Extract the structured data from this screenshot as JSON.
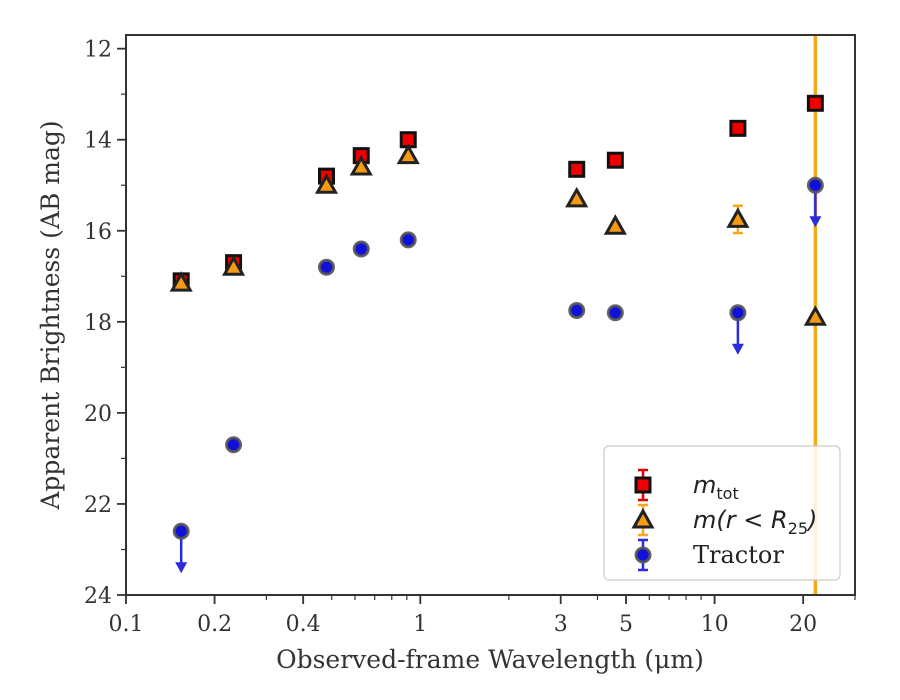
{
  "chart_data": {
    "type": "scatter",
    "xlabel": "Observed-frame Wavelength (μm)",
    "ylabel": "Apparent Brightness (AB mag)",
    "x_scale": "log",
    "xlim": [
      0.1,
      30
    ],
    "ylim": [
      24,
      11.7
    ],
    "y_inverted": true,
    "x_ticks": [
      {
        "value": 0.1,
        "label": "0.1"
      },
      {
        "value": 0.2,
        "label": "0.2"
      },
      {
        "value": 0.4,
        "label": "0.4"
      },
      {
        "value": 1,
        "label": "1"
      },
      {
        "value": 3,
        "label": "3"
      },
      {
        "value": 5,
        "label": "5"
      },
      {
        "value": 10,
        "label": "10"
      },
      {
        "value": 20,
        "label": "20"
      }
    ],
    "y_ticks": [
      {
        "value": 12,
        "label": "12"
      },
      {
        "value": 14,
        "label": "14"
      },
      {
        "value": 16,
        "label": "16"
      },
      {
        "value": 18,
        "label": "18"
      },
      {
        "value": 20,
        "label": "20"
      },
      {
        "value": 22,
        "label": "22"
      },
      {
        "value": 24,
        "label": "24"
      }
    ],
    "vertical_line": {
      "x": 22,
      "color": "#f5a81c"
    },
    "legend_position": "lower-right",
    "series": [
      {
        "name": "m_tot",
        "marker": "square",
        "color": "#ee0000",
        "edge_color": "#111111",
        "errorbar_color": "#dd0000",
        "x": [
          0.154,
          0.232,
          0.48,
          0.63,
          0.91,
          3.4,
          4.6,
          12.0,
          22.0
        ],
        "y": [
          17.1,
          16.7,
          14.8,
          14.35,
          14.0,
          14.65,
          14.45,
          13.75,
          13.2
        ],
        "yerr": [
          0.08,
          0.08,
          0.05,
          0.05,
          0.05,
          0.05,
          0.05,
          0.05,
          0.05
        ]
      },
      {
        "name": "m(r<R25)",
        "marker": "triangle",
        "color": "#f59a12",
        "edge_color": "#222222",
        "errorbar_color": "#f5a81c",
        "x": [
          0.154,
          0.232,
          0.48,
          0.63,
          0.91,
          3.4,
          4.6,
          12.0,
          22.0
        ],
        "y": [
          17.15,
          16.8,
          15.0,
          14.6,
          14.35,
          15.3,
          15.9,
          15.75,
          17.9
        ],
        "yerr": [
          0.05,
          0.05,
          0.05,
          0.05,
          0.05,
          0.05,
          0.05,
          0.3,
          0.05
        ]
      },
      {
        "name": "Tractor",
        "marker": "circle",
        "color": "#1010dd",
        "edge_color": "#555555",
        "errorbar_color": "#2a2ae0",
        "x": [
          0.154,
          0.232,
          0.48,
          0.63,
          0.91,
          3.4,
          4.6,
          12.0,
          22.0
        ],
        "y": [
          22.6,
          20.7,
          16.8,
          16.4,
          16.2,
          17.75,
          17.8,
          17.8,
          15.0
        ],
        "yerr": [
          0.05,
          0.05,
          0.05,
          0.05,
          0.05,
          0.05,
          0.05,
          0.05,
          0.05
        ],
        "upper_limits": [
          true,
          false,
          false,
          false,
          false,
          false,
          false,
          true,
          true
        ]
      }
    ]
  },
  "legend": [
    {
      "main": "m",
      "sub": "tot",
      "tail": ""
    },
    {
      "main": "m(r < R",
      "sub": "25",
      "tail": ")"
    },
    {
      "main": "Tractor",
      "sub": "",
      "tail": ""
    }
  ]
}
